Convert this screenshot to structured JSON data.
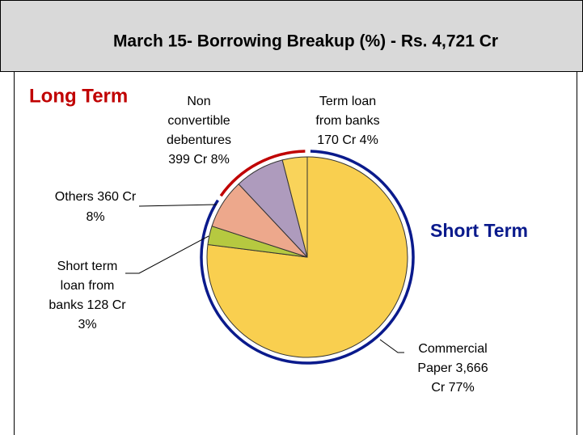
{
  "chart_data": {
    "type": "pie",
    "title": "March 15- Borrowing Breakup (%) - Rs. 4,721 Cr",
    "values": [
      77,
      3,
      8,
      8,
      4
    ],
    "value_labels": [
      [
        "Commercial",
        "Paper 3,666",
        "Cr 77%"
      ],
      [
        "Short term",
        "loan from",
        "banks 128 Cr",
        "3%"
      ],
      [
        "Others 360 Cr",
        "8%"
      ],
      [
        "Non",
        "convertible",
        "debentures",
        "399 Cr 8%"
      ],
      [
        "Term loan",
        "from banks",
        "170 Cr 4%"
      ]
    ],
    "colors": [
      "#f9cf4f",
      "#b6c940",
      "#eda88c",
      "#ae9bbd",
      "#f9d35a"
    ],
    "annotations": [
      {
        "text": "Long Term",
        "color": "#c00000"
      },
      {
        "text": "Short Term",
        "color": "#0a1a8c"
      }
    ]
  }
}
